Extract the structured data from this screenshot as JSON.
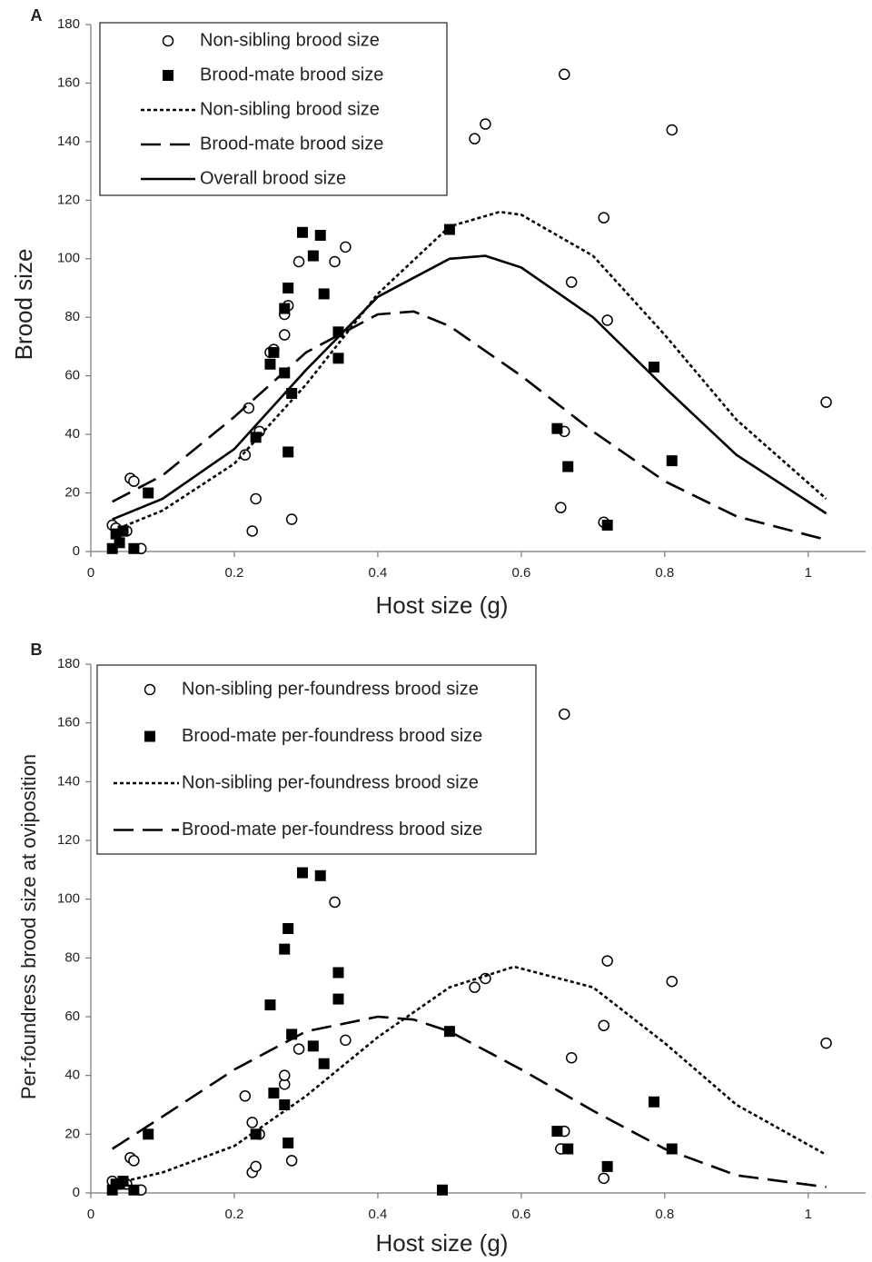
{
  "chart_data": [
    {
      "type": "scatter",
      "panel_label": "A",
      "xlabel": "Host size (g)",
      "ylabel": "Brood size",
      "xlim": [
        0,
        1.08
      ],
      "ylim": [
        0,
        180
      ],
      "xticks": [
        0,
        0.2,
        0.4,
        0.6,
        0.8,
        1
      ],
      "yticks": [
        0,
        20,
        40,
        60,
        80,
        100,
        120,
        140,
        160,
        180
      ],
      "legend": "upper left",
      "series": [
        {
          "name": "Non-sibling brood size",
          "marker": "open-circle",
          "color": "#000000",
          "x": [
            0.03,
            0.035,
            0.045,
            0.05,
            0.055,
            0.06,
            0.07,
            0.215,
            0.22,
            0.225,
            0.23,
            0.235,
            0.25,
            0.255,
            0.27,
            0.27,
            0.275,
            0.28,
            0.29,
            0.34,
            0.355,
            0.535,
            0.55,
            0.655,
            0.66,
            0.66,
            0.67,
            0.715,
            0.715,
            0.72,
            0.81,
            1.025
          ],
          "values": [
            9,
            8,
            7,
            7,
            25,
            24,
            1,
            33,
            49,
            7,
            18,
            41,
            68,
            69,
            74,
            81,
            84,
            11,
            99,
            99,
            104,
            141,
            146,
            15,
            41,
            163,
            92,
            114,
            10,
            79,
            144,
            51
          ]
        },
        {
          "name": "Brood-mate brood size",
          "marker": "square",
          "color": "#000000",
          "x": [
            0.03,
            0.035,
            0.04,
            0.045,
            0.06,
            0.08,
            0.23,
            0.25,
            0.255,
            0.27,
            0.27,
            0.275,
            0.275,
            0.28,
            0.295,
            0.31,
            0.32,
            0.325,
            0.345,
            0.345,
            0.5,
            0.65,
            0.665,
            0.72,
            0.785,
            0.81
          ],
          "values": [
            1,
            6,
            3,
            7,
            1,
            20,
            39,
            64,
            68,
            61,
            83,
            90,
            34,
            54,
            109,
            101,
            108,
            88,
            75,
            66,
            110,
            42,
            29,
            9,
            63,
            31
          ]
        },
        {
          "name": "Non-sibling brood size",
          "line": "dotted",
          "color": "#000000",
          "x": [
            0.03,
            0.1,
            0.2,
            0.3,
            0.4,
            0.5,
            0.57,
            0.6,
            0.7,
            0.8,
            0.9,
            1.025
          ],
          "values": [
            7,
            14,
            30,
            57,
            88,
            111,
            116,
            115,
            101,
            74,
            45,
            18
          ]
        },
        {
          "name": "Brood-mate brood size",
          "line": "dashed",
          "color": "#000000",
          "x": [
            0.03,
            0.1,
            0.2,
            0.3,
            0.4,
            0.45,
            0.5,
            0.6,
            0.7,
            0.8,
            0.9,
            1.025
          ],
          "values": [
            17,
            26,
            46,
            68,
            81,
            82,
            77,
            60,
            41,
            24,
            12,
            4
          ]
        },
        {
          "name": "Overall brood size",
          "line": "solid",
          "color": "#000000",
          "x": [
            0.03,
            0.1,
            0.2,
            0.3,
            0.4,
            0.5,
            0.55,
            0.6,
            0.7,
            0.8,
            0.9,
            1.025
          ],
          "values": [
            11,
            18,
            35,
            62,
            87,
            100,
            101,
            97,
            80,
            56,
            33,
            13
          ]
        }
      ]
    },
    {
      "type": "scatter",
      "panel_label": "B",
      "xlabel": "Host size (g)",
      "ylabel": "Per-foundress brood size at oviposition",
      "xlim": [
        0,
        1.08
      ],
      "ylim": [
        0,
        180
      ],
      "xticks": [
        0,
        0.2,
        0.4,
        0.6,
        0.8,
        1
      ],
      "yticks": [
        0,
        20,
        40,
        60,
        80,
        100,
        120,
        140,
        160,
        180
      ],
      "legend": "upper left",
      "series": [
        {
          "name": "Non-sibling per-foundress brood size",
          "marker": "open-circle",
          "color": "#000000",
          "x": [
            0.03,
            0.04,
            0.05,
            0.055,
            0.06,
            0.07,
            0.215,
            0.225,
            0.225,
            0.23,
            0.235,
            0.27,
            0.27,
            0.28,
            0.29,
            0.34,
            0.355,
            0.535,
            0.55,
            0.655,
            0.66,
            0.66,
            0.67,
            0.715,
            0.715,
            0.72,
            0.81,
            1.025
          ],
          "values": [
            4,
            3,
            3,
            12,
            11,
            1,
            33,
            24,
            7,
            9,
            20,
            37,
            40,
            11,
            49,
            99,
            52,
            70,
            73,
            15,
            21,
            163,
            46,
            57,
            5,
            79,
            72,
            51
          ]
        },
        {
          "name": "Brood-mate per-foundress brood size",
          "marker": "square",
          "color": "#000000",
          "x": [
            0.03,
            0.035,
            0.04,
            0.045,
            0.06,
            0.08,
            0.23,
            0.25,
            0.255,
            0.27,
            0.27,
            0.275,
            0.275,
            0.28,
            0.295,
            0.31,
            0.32,
            0.325,
            0.345,
            0.345,
            0.49,
            0.5,
            0.65,
            0.665,
            0.72,
            0.785,
            0.81
          ],
          "values": [
            1,
            3,
            3,
            4,
            1,
            20,
            20,
            64,
            34,
            30,
            83,
            90,
            17,
            54,
            109,
            50,
            108,
            44,
            75,
            66,
            1,
            55,
            21,
            15,
            9,
            31,
            15
          ]
        },
        {
          "name": "Non-sibling per-foundress brood size",
          "line": "dotted",
          "color": "#000000",
          "x": [
            0.03,
            0.1,
            0.2,
            0.3,
            0.4,
            0.5,
            0.59,
            0.7,
            0.8,
            0.9,
            1.025
          ],
          "values": [
            3,
            7,
            16,
            33,
            53,
            70,
            77,
            70,
            51,
            30,
            13
          ]
        },
        {
          "name": "Brood-mate per-foundress brood size",
          "line": "dashed",
          "color": "#000000",
          "x": [
            0.03,
            0.1,
            0.2,
            0.3,
            0.4,
            0.45,
            0.5,
            0.6,
            0.7,
            0.8,
            0.9,
            1.025
          ],
          "values": [
            15,
            26,
            42,
            55,
            60,
            59,
            55,
            42,
            28,
            15,
            6,
            2
          ]
        }
      ]
    }
  ]
}
